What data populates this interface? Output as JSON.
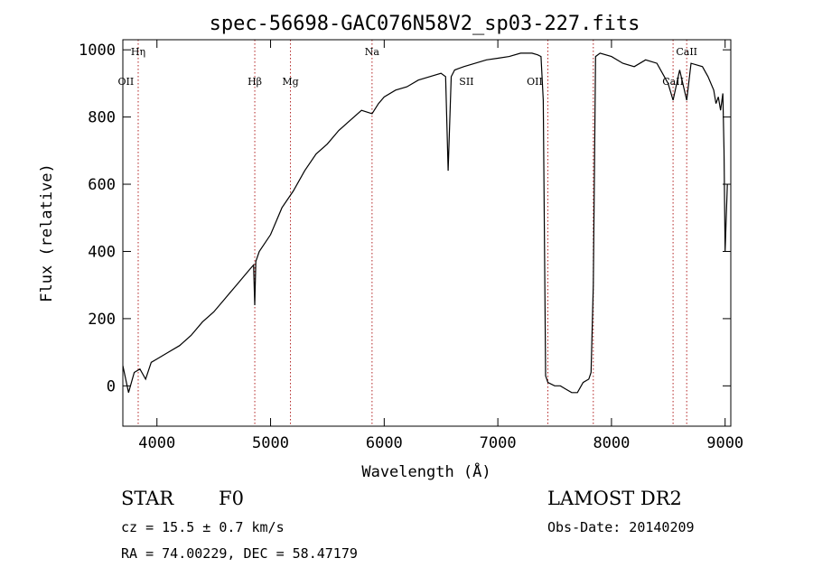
{
  "chart_data": {
    "type": "line",
    "title": "spec-56698-GAC076N58V2_sp03-227.fits",
    "xlabel": "Wavelength (Å)",
    "ylabel": "Flux (relative)",
    "xlim": [
      3700,
      9050
    ],
    "ylim": [
      -120,
      1030
    ],
    "xticks": [
      4000,
      5000,
      6000,
      7000,
      8000,
      9000
    ],
    "xtick_labels": [
      "4000",
      "5000",
      "6000",
      "7000",
      "8000",
      "9000"
    ],
    "yticks": [
      0,
      200,
      400,
      600,
      800,
      1000
    ],
    "ytick_labels": [
      "0",
      "200",
      "400",
      "600",
      "800",
      "1000"
    ],
    "series": [
      {
        "style": "black-line",
        "x": [
          3700,
          3750,
          3800,
          3850,
          3900,
          3950,
          4000,
          4100,
          4200,
          4300,
          4400,
          4500,
          4600,
          4700,
          4800,
          4850,
          4861,
          4870,
          4900,
          5000,
          5100,
          5200,
          5300,
          5400,
          5500,
          5600,
          5700,
          5800,
          5893,
          5950,
          6000,
          6100,
          6200,
          6300,
          6400,
          6500,
          6540,
          6563,
          6590,
          6620,
          6700,
          6800,
          6900,
          7000,
          7100,
          7200,
          7300,
          7350,
          7380,
          7400,
          7420,
          7440,
          7500,
          7550,
          7600,
          7650,
          7700,
          7750,
          7800,
          7820,
          7840,
          7860,
          7900,
          8000,
          8100,
          8200,
          8300,
          8400,
          8498,
          8542,
          8600,
          8662,
          8700,
          8800,
          8850,
          8900,
          8920,
          8940,
          8960,
          8980,
          8990,
          9000,
          9020
        ],
        "y": [
          60,
          -20,
          40,
          50,
          20,
          70,
          80,
          100,
          120,
          150,
          190,
          220,
          260,
          300,
          340,
          360,
          240,
          370,
          400,
          450,
          530,
          580,
          640,
          690,
          720,
          760,
          790,
          820,
          810,
          840,
          860,
          880,
          890,
          910,
          920,
          930,
          920,
          640,
          920,
          940,
          950,
          960,
          970,
          975,
          980,
          990,
          990,
          985,
          980,
          850,
          30,
          10,
          0,
          0,
          -10,
          -20,
          -20,
          10,
          20,
          40,
          300,
          980,
          990,
          980,
          960,
          950,
          970,
          960,
          900,
          850,
          940,
          850,
          960,
          950,
          920,
          880,
          840,
          860,
          820,
          870,
          700,
          400,
          600
        ]
      }
    ],
    "line_markers": [
      {
        "label": "Hη",
        "x": 3835,
        "row": 1
      },
      {
        "label": "OII",
        "x": 3727,
        "row": 2
      },
      {
        "label": "Hβ",
        "x": 4861,
        "row": 2
      },
      {
        "label": "Mg",
        "x": 5175,
        "row": 2
      },
      {
        "label": "Na",
        "x": 5893,
        "row": 1
      },
      {
        "label": "OII",
        "x": 7325,
        "row": 2
      },
      {
        "label": "SII",
        "x": 6724,
        "row": 2
      },
      {
        "label": "CaII",
        "x": 8662,
        "row": 1
      },
      {
        "label": "CaII",
        "x": 8542,
        "row": 2
      }
    ],
    "marker_lines_x": [
      3835,
      4861,
      5175,
      5893,
      7440,
      7840,
      8542,
      8662
    ],
    "marker_color": "#b22222"
  },
  "info": {
    "object_class": "STAR",
    "subclass": "F0",
    "cz": "cz = 15.5 ± 0.7 km/s",
    "radec": "RA =  74.00229, DEC =  58.47179",
    "survey": "LAMOST DR2",
    "obs_date": "Obs-Date: 20140209"
  }
}
